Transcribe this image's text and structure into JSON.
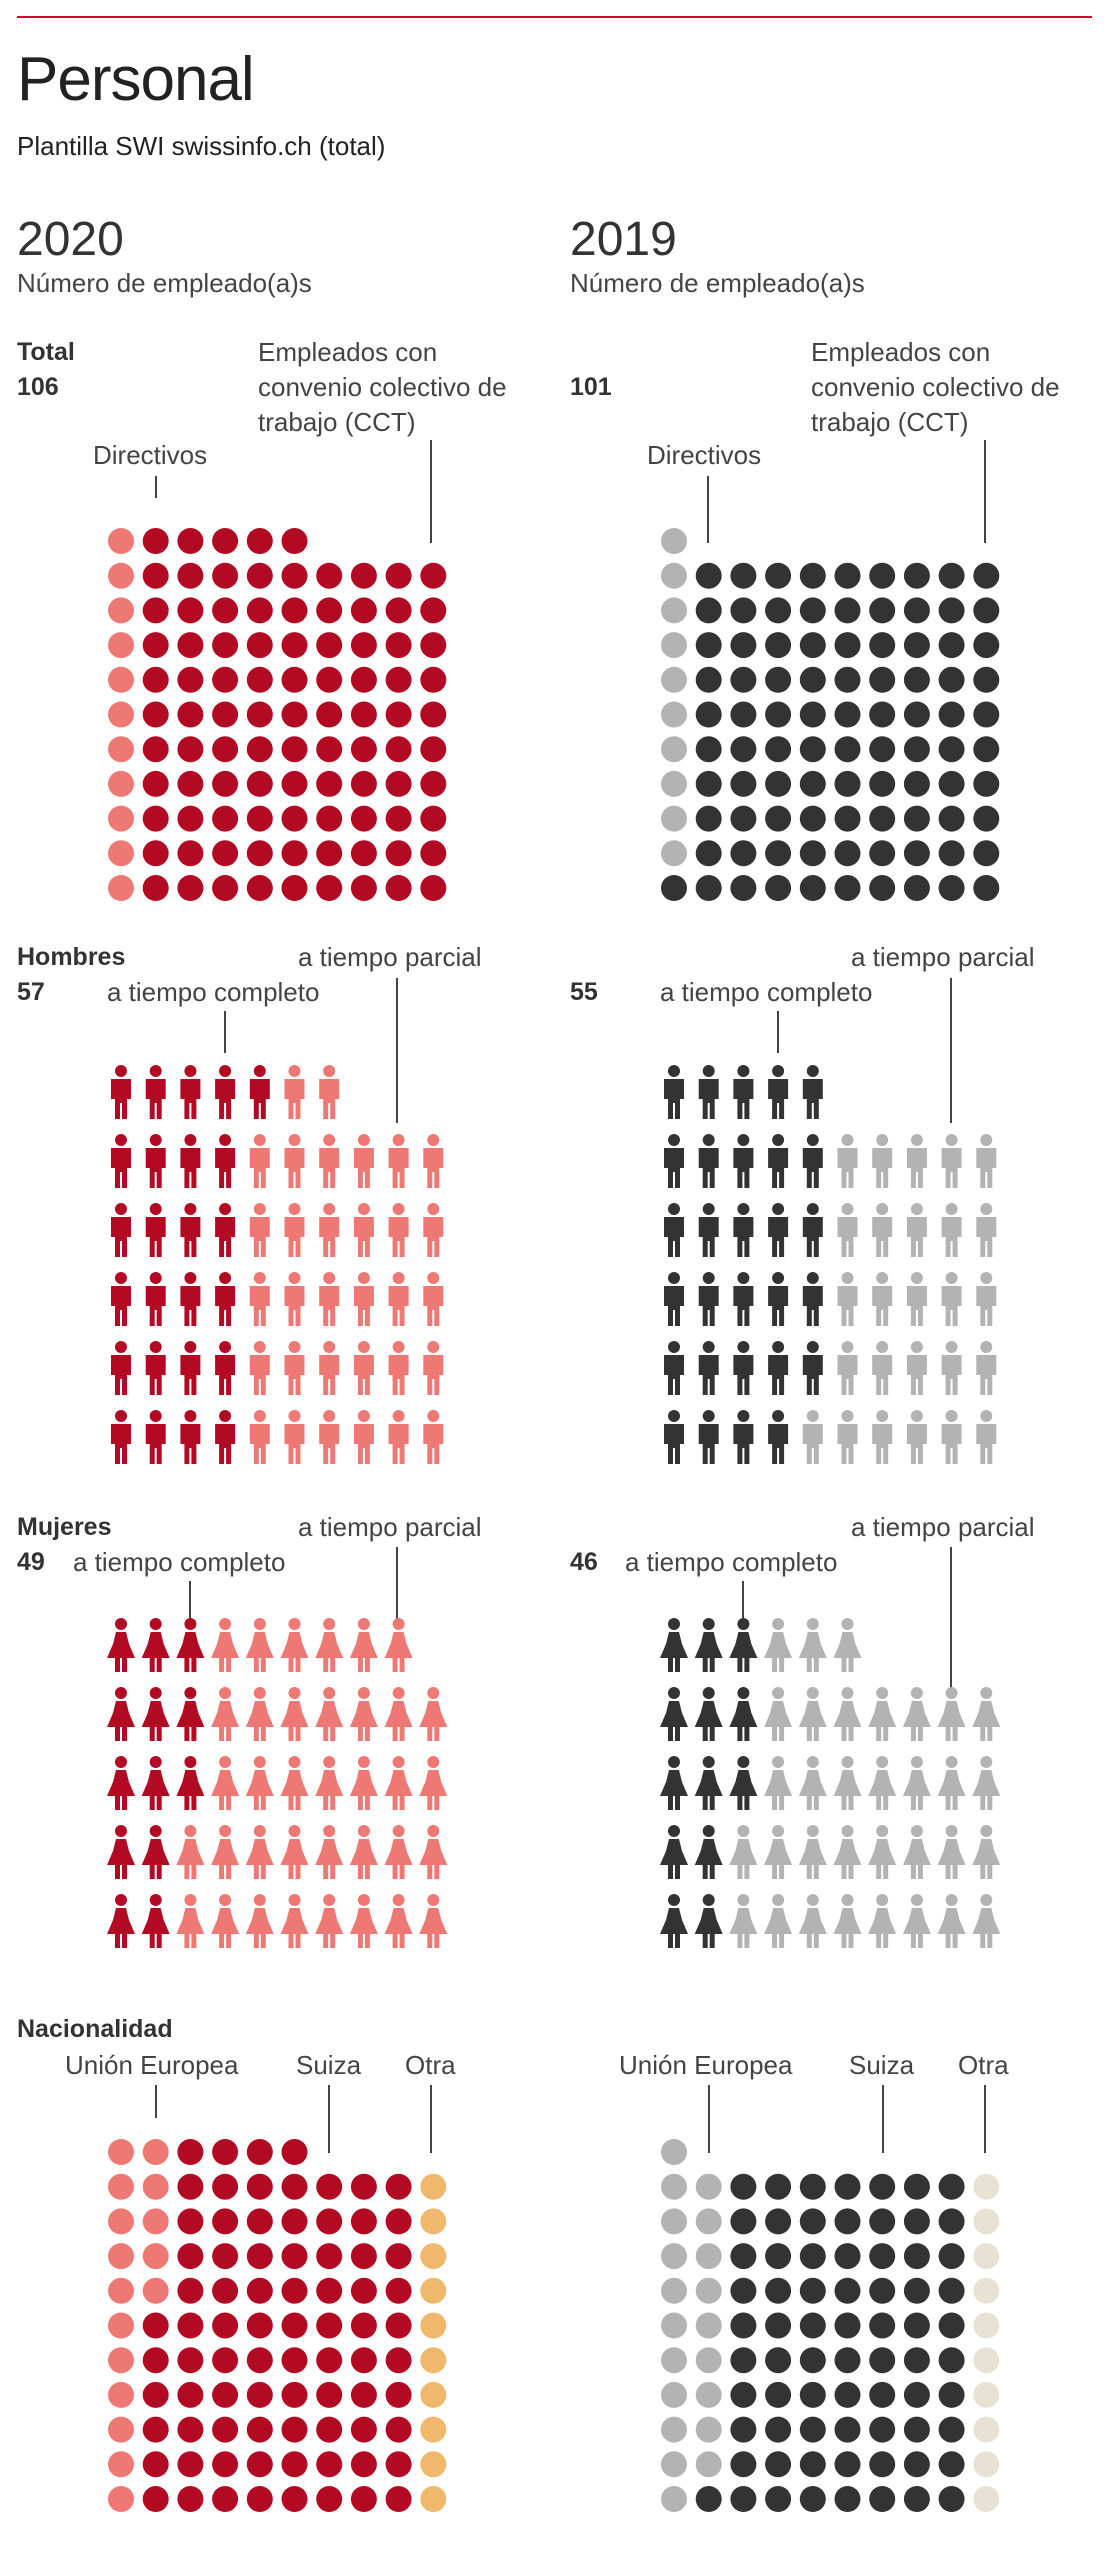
{
  "title": "Personal",
  "subtitle": "Plantilla SWI swissinfo.ch (total)",
  "colors": {
    "rule": "#c8102e",
    "red_dark": "#b30a24",
    "red_light": "#ee7873",
    "gray_dark": "#333333",
    "gray_light": "#b3b3b3",
    "orange": "#efb86c",
    "beige": "#e7e2d3"
  },
  "years": [
    {
      "year": "2020",
      "units_label": "Número de empleado(a)s"
    },
    {
      "year": "2019",
      "units_label": "Número de empleado(a)s"
    }
  ],
  "total": {
    "label": "Total",
    "annotations": {
      "directivos": "Directivos",
      "cct": "Empleados con convenio colectivo de trabajo (CCT)"
    },
    "values": [
      "106",
      "101"
    ]
  },
  "hombres": {
    "label": "Hombres",
    "annotations": {
      "completo": "a tiempo completo",
      "parcial": "a tiempo parcial"
    },
    "values": [
      "57",
      "55"
    ]
  },
  "mujeres": {
    "label": "Mujeres",
    "annotations": {
      "completo": "a tiempo completo",
      "parcial": "a tiempo parcial"
    },
    "values": [
      "49",
      "46"
    ]
  },
  "nacionalidad": {
    "label": "Nacionalidad",
    "annotations": {
      "ue": "Unión Europea",
      "suiza": "Suiza",
      "otra": "Otra"
    }
  },
  "chart_data": [
    {
      "type": "unit",
      "section": "Total",
      "year": "2020",
      "total": 106,
      "categories": [
        "Directivos",
        "Empleados con convenio colectivo de trabajo (CCT)"
      ],
      "values": [
        11,
        95
      ]
    },
    {
      "type": "unit",
      "section": "Total",
      "year": "2019",
      "total": 101,
      "categories": [
        "Directivos",
        "Empleados con convenio colectivo de trabajo (CCT)"
      ],
      "values": [
        10,
        91
      ]
    },
    {
      "type": "unit",
      "section": "Hombres",
      "year": "2020",
      "total": 57,
      "categories": [
        "a tiempo completo",
        "a tiempo parcial"
      ],
      "values": [
        25,
        32
      ]
    },
    {
      "type": "unit",
      "section": "Hombres",
      "year": "2019",
      "total": 55,
      "categories": [
        "a tiempo completo",
        "a tiempo parcial"
      ],
      "values": [
        29,
        26
      ]
    },
    {
      "type": "unit",
      "section": "Mujeres",
      "year": "2020",
      "total": 49,
      "categories": [
        "a tiempo completo",
        "a tiempo parcial"
      ],
      "values": [
        13,
        36
      ]
    },
    {
      "type": "unit",
      "section": "Mujeres",
      "year": "2019",
      "total": 46,
      "categories": [
        "a tiempo completo",
        "a tiempo parcial"
      ],
      "values": [
        13,
        33
      ]
    },
    {
      "type": "unit",
      "section": "Nacionalidad",
      "year": "2020",
      "total": 106,
      "categories": [
        "Unión Europea",
        "Suiza",
        "Otra"
      ],
      "values": [
        16,
        80,
        10
      ]
    },
    {
      "type": "unit",
      "section": "Nacionalidad",
      "year": "2019",
      "total": 101,
      "categories": [
        "Unión Europea",
        "Suiza",
        "Otra"
      ],
      "values": [
        20,
        71,
        10
      ]
    }
  ]
}
